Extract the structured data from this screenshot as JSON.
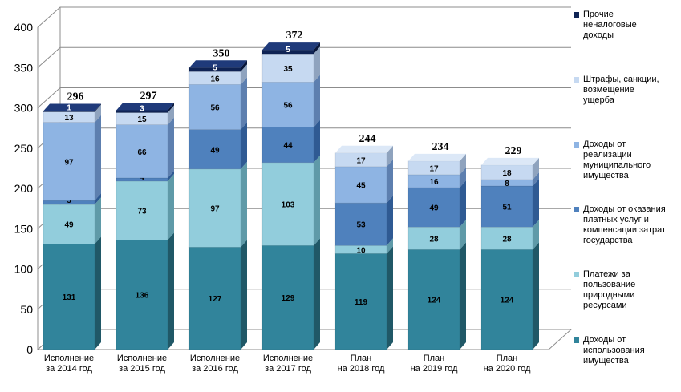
{
  "chart_data": {
    "type": "bar",
    "stacked": true,
    "three_d": true,
    "categories": [
      "Исполнение\nза 2014 год",
      "Исполнение\nза 2015 год",
      "Исполнение\nза 2016 год",
      "Исполнение\nза 2017 год",
      "План\nна 2018 год",
      "План\nна 2019 год",
      "План\nна 2020 год"
    ],
    "series": [
      {
        "name": "Доходы от использования имущества",
        "values": [
          131,
          136,
          127,
          129,
          119,
          124,
          124
        ],
        "color": "#31849B",
        "color_top": "#4BA3B9",
        "color_side": "#205867"
      },
      {
        "name": "Платежи за пользование природными ресурсами",
        "values": [
          49,
          73,
          97,
          103,
          10,
          28,
          28
        ],
        "color": "#92CDDC",
        "color_top": "#B7DEE8",
        "color_side": "#5F9AA8"
      },
      {
        "name": "Доходы от оказания платных услуг и компенсации затрат государства",
        "values": [
          5,
          4,
          49,
          44,
          53,
          49,
          51
        ],
        "color": "#4F81BD",
        "color_top": "#7FA4D4",
        "color_side": "#2F5A93"
      },
      {
        "name": "Доходы от реализации муниципального имущества",
        "values": [
          97,
          66,
          56,
          56,
          45,
          16,
          8
        ],
        "color": "#8EB4E3",
        "color_top": "#B2CCEE",
        "color_side": "#5D7FAF"
      },
      {
        "name": "Штрафы, санкции, возмещение ущерба",
        "values": [
          13,
          15,
          16,
          35,
          17,
          17,
          18
        ],
        "color": "#C6D9F1",
        "color_top": "#DCE8F7",
        "color_side": "#8FA3BE"
      },
      {
        "name": "Прочие неналоговые доходы",
        "values": [
          1,
          3,
          5,
          5,
          0,
          0,
          0
        ],
        "color": "#0F2354",
        "color_top": "#1F3A7A",
        "color_side": "#08163A"
      }
    ],
    "totals": [
      296,
      297,
      350,
      372,
      244,
      234,
      229
    ],
    "ylim": [
      0,
      400
    ],
    "yticks": [
      0,
      50,
      100,
      150,
      200,
      250,
      300,
      350,
      400
    ],
    "grid": true,
    "legend_position": "right"
  }
}
